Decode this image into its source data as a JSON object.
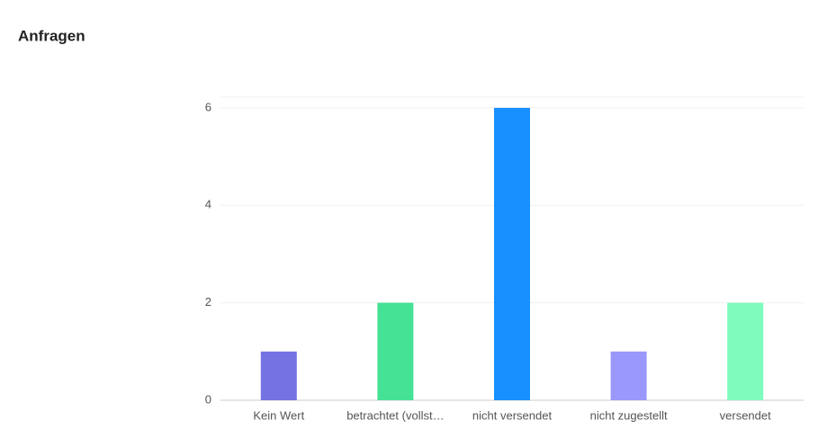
{
  "chart_data": {
    "type": "bar",
    "title": "Anfragen",
    "categories": [
      "Kein Wert",
      "betrachtet (vollst…",
      "nicht versendet",
      "nicht zugestellt",
      "versendet"
    ],
    "values": [
      1,
      2,
      6,
      1,
      2
    ],
    "colors": [
      "#7572e4",
      "#45e195",
      "#1890ff",
      "#9a98fb",
      "#7ffbbd"
    ],
    "ylim": [
      0,
      6.22
    ],
    "yticks": [
      0,
      2,
      4,
      6
    ],
    "grid": true
  }
}
